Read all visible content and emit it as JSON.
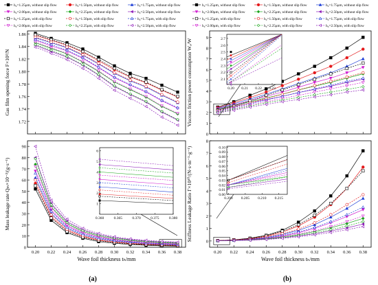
{
  "colors": [
    "#000000",
    "#e41a1c",
    "#1f3fd6",
    "#d01fd0",
    "#1aa51a",
    "#8c1ab8",
    "#e8a21a",
    "#9ab81a",
    "#8aa0b8"
  ],
  "markers": [
    "square",
    "circle",
    "triangle",
    "tri-down",
    "diamond",
    "tri-left",
    "tri-right",
    "hexagon",
    "star"
  ],
  "legend_a": {
    "labels": [
      "h₀=1.25μm, without slip flow",
      "h₀=1.50μm, without slip flow",
      "h₀=1.75μm, without slip flow",
      "h₀=2.00μm, without slip flow",
      "h₀=2.25μm, without slip flow",
      "h₀=2.50μm, without slip flow",
      "h₀=1.25μm, with slip flow",
      "h₀=1.50μm, with slip flow",
      "h₀=1.75μm, with slip flow",
      "h₀=2.00μm, with slip flow",
      "h₀=2.25μm, with slip flow",
      "h₀=2.50μm, with slip flow"
    ]
  },
  "legend_b": {
    "labels": [
      "h₀=1.25μm, without slip flow",
      "h₀=1.50μm, without slip flow",
      "h₀=1.75μm, without slip flow",
      "h₀=2.00μm, without slip flow",
      "h₀=2.25μm, without slip flow",
      "h₀=2.50μm, without slip flow",
      "h₀=1.25μm, with slip flow",
      "h₀=1.50μm, with slip flow",
      "h₀=1.75μm, with slip flow",
      "h₀=2.00μm, with slip flow",
      "h₀=2.25μm, with slip flow",
      "h₀=2.50μm, with slip flow"
    ]
  },
  "panel_labels": {
    "a": "(a)",
    "b": "(b)"
  },
  "chart_data": [
    {
      "id": "a_top",
      "type": "line",
      "ylabel": "Gas film opening force F×10³/N",
      "xlabel": "",
      "ylim": [
        1.7,
        1.865
      ],
      "yticks": [
        1.72,
        1.74,
        1.76,
        1.78,
        1.8,
        1.82,
        1.84,
        1.86
      ],
      "ytick_labels": [
        "1.72",
        "1.74",
        "1.76",
        "1.78",
        "1.80",
        "1.82",
        "1.84",
        "1.86"
      ],
      "x": [
        0.2,
        0.22,
        0.24,
        0.26,
        0.28,
        0.3,
        0.32,
        0.34,
        0.36,
        0.38
      ],
      "series": [
        {
          "name": "h₀=1.25μm, without slip flow",
          "values": [
            1.861,
            1.853,
            1.846,
            1.836,
            1.823,
            1.809,
            1.797,
            1.789,
            1.778,
            1.767
          ]
        },
        {
          "name": "h₀=1.50μm, without slip flow",
          "values": [
            1.858,
            1.85,
            1.842,
            1.831,
            1.817,
            1.803,
            1.791,
            1.782,
            1.77,
            1.759
          ]
        },
        {
          "name": "h₀=1.75μm, without slip flow",
          "values": [
            1.854,
            1.846,
            1.838,
            1.826,
            1.812,
            1.797,
            1.785,
            1.775,
            1.762,
            1.75
          ]
        },
        {
          "name": "h₀=2.00μm, without slip flow",
          "values": [
            1.85,
            1.841,
            1.833,
            1.821,
            1.806,
            1.79,
            1.778,
            1.767,
            1.753,
            1.741
          ]
        },
        {
          "name": "h₀=2.25μm, without slip flow",
          "values": [
            1.846,
            1.837,
            1.828,
            1.815,
            1.8,
            1.783,
            1.771,
            1.759,
            1.744,
            1.732
          ]
        },
        {
          "name": "h₀=2.50μm, without slip flow",
          "values": [
            1.842,
            1.832,
            1.823,
            1.81,
            1.794,
            1.776,
            1.763,
            1.751,
            1.735,
            1.722
          ]
        },
        {
          "name": "h₀=1.25μm, with slip flow",
          "values": [
            1.859,
            1.851,
            1.843,
            1.832,
            1.819,
            1.805,
            1.792,
            1.783,
            1.771,
            1.76
          ]
        },
        {
          "name": "h₀=1.50μm, with slip flow",
          "values": [
            1.855,
            1.847,
            1.839,
            1.827,
            1.813,
            1.798,
            1.786,
            1.776,
            1.763,
            1.751
          ]
        },
        {
          "name": "h₀=1.75μm, with slip flow",
          "values": [
            1.851,
            1.843,
            1.834,
            1.822,
            1.807,
            1.791,
            1.779,
            1.768,
            1.754,
            1.742
          ]
        },
        {
          "name": "h₀=2.00μm, with slip flow",
          "values": [
            1.847,
            1.838,
            1.829,
            1.816,
            1.801,
            1.784,
            1.772,
            1.76,
            1.745,
            1.733
          ]
        },
        {
          "name": "h₀=2.25μm, with slip flow",
          "values": [
            1.843,
            1.834,
            1.824,
            1.811,
            1.795,
            1.777,
            1.764,
            1.752,
            1.736,
            1.723
          ]
        },
        {
          "name": "h₀=2.50μm, with slip flow",
          "values": [
            1.839,
            1.829,
            1.819,
            1.805,
            1.789,
            1.77,
            1.757,
            1.744,
            1.727,
            1.714
          ]
        }
      ]
    },
    {
      "id": "a_bottom",
      "type": "line",
      "ylabel": "Mass leakage rate Qₘ×10⁻²/(g·s⁻¹)",
      "xlabel": "Wave foil thickness tₕ/mm",
      "ylim": [
        0,
        95
      ],
      "yticks": [
        0,
        10,
        20,
        30,
        40,
        50,
        60,
        70,
        80,
        90
      ],
      "ytick_labels": [
        "0",
        "10",
        "20",
        "30",
        "40",
        "50",
        "60",
        "70",
        "80",
        "90"
      ],
      "x": [
        0.2,
        0.22,
        0.24,
        0.26,
        0.28,
        0.3,
        0.32,
        0.34,
        0.36,
        0.38
      ],
      "xtick_labels": [
        "0.20",
        "0.22",
        "0.24",
        "0.26",
        "0.28",
        "0.30",
        "0.32",
        "0.34",
        "0.36",
        "0.38"
      ],
      "series": [
        {
          "name": "h₀=1.25μm, without slip flow",
          "values": [
            52,
            24,
            13,
            8,
            5,
            3.5,
            2.5,
            1.8,
            1.3,
            1.0
          ]
        },
        {
          "name": "h₀=1.50μm, without slip flow",
          "values": [
            57,
            27,
            15,
            9.5,
            6.2,
            4.5,
            3.3,
            2.5,
            1.9,
            1.5
          ]
        },
        {
          "name": "h₀=1.75μm, without slip flow",
          "values": [
            62,
            30,
            17,
            11,
            7.5,
            5.5,
            4.2,
            3.2,
            2.6,
            2.1
          ]
        },
        {
          "name": "h₀=2.00μm, without slip flow",
          "values": [
            68,
            33,
            19,
            12.5,
            8.8,
            6.5,
            5.0,
            4.0,
            3.3,
            2.8
          ]
        },
        {
          "name": "h₀=2.25μm, without slip flow",
          "values": [
            74,
            36,
            21,
            14,
            10,
            7.5,
            5.9,
            4.8,
            4.0,
            3.5
          ]
        },
        {
          "name": "h₀=2.50μm, without slip flow",
          "values": [
            80,
            39,
            23,
            15.5,
            11.2,
            8.5,
            6.8,
            5.6,
            4.7,
            4.2
          ]
        },
        {
          "name": "h₀=1.25μm, with slip flow",
          "values": [
            55,
            26,
            14,
            8.8,
            5.8,
            4.1,
            3.0,
            2.2,
            1.7,
            1.3
          ]
        },
        {
          "name": "h₀=1.50μm, with slip flow",
          "values": [
            60,
            29,
            16,
            10.3,
            7.0,
            5.1,
            3.8,
            2.9,
            2.3,
            1.8
          ]
        },
        {
          "name": "h₀=1.75μm, with slip flow",
          "values": [
            66,
            32,
            18,
            12,
            8.3,
            6.1,
            4.7,
            3.7,
            3.0,
            2.5
          ]
        },
        {
          "name": "h₀=2.00μm, with slip flow",
          "values": [
            72,
            35,
            20,
            13.5,
            9.6,
            7.2,
            5.6,
            4.5,
            3.7,
            3.2
          ]
        },
        {
          "name": "h₀=2.25μm, with slip flow",
          "values": [
            79,
            38,
            22,
            15,
            10.9,
            8.2,
            6.5,
            5.3,
            4.4,
            3.9
          ]
        },
        {
          "name": "h₀=2.50μm, with slip flow",
          "values": [
            90,
            42,
            25,
            16.8,
            12.3,
            9.3,
            7.4,
            6.2,
            5.2,
            4.6
          ]
        }
      ],
      "inset": {
        "xlim": [
          0.36,
          0.38
        ],
        "xticks": [
          0.36,
          0.365,
          0.37,
          0.375,
          0.38
        ],
        "xtick_labels": [
          "0.360",
          "0.365",
          "0.370",
          "0.375",
          "0.380"
        ],
        "ylim": [
          0,
          6.3
        ],
        "yticks": [
          1,
          2,
          3,
          4,
          5,
          6
        ],
        "ytick_labels": [
          "1",
          "2",
          "3",
          "4",
          "5",
          "6"
        ]
      }
    },
    {
      "id": "b_top",
      "type": "line",
      "ylabel": "Viscous friction power consumption Wₐ/W",
      "xlabel": "",
      "ylim": [
        0,
        9.6
      ],
      "yticks": [
        0,
        1,
        2,
        3,
        4,
        5,
        6,
        7,
        8,
        9
      ],
      "ytick_labels": [
        "0",
        "1",
        "2",
        "3",
        "4",
        "5",
        "6",
        "7",
        "8",
        "9"
      ],
      "x": [
        0.2,
        0.22,
        0.24,
        0.26,
        0.28,
        0.3,
        0.32,
        0.34,
        0.36,
        0.38
      ],
      "series": [
        {
          "name": "h₀=1.25μm, without slip flow",
          "values": [
            2.5,
            3.0,
            3.6,
            4.2,
            4.9,
            5.6,
            6.3,
            7.1,
            8.0,
            9.0
          ]
        },
        {
          "name": "h₀=1.50μm, without slip flow",
          "values": [
            2.45,
            2.9,
            3.4,
            3.9,
            4.5,
            5.1,
            5.7,
            6.3,
            7.1,
            7.9
          ]
        },
        {
          "name": "h₀=1.75μm, without slip flow",
          "values": [
            2.4,
            2.8,
            3.25,
            3.7,
            4.2,
            4.7,
            5.2,
            5.7,
            6.3,
            7.0
          ]
        },
        {
          "name": "h₀=2.00μm, without slip flow",
          "values": [
            2.35,
            2.7,
            3.1,
            3.5,
            3.9,
            4.35,
            4.8,
            5.2,
            5.7,
            6.2
          ]
        },
        {
          "name": "h₀=2.25μm, without slip flow",
          "values": [
            2.3,
            2.65,
            3.0,
            3.35,
            3.7,
            4.1,
            4.45,
            4.8,
            5.2,
            5.6
          ]
        },
        {
          "name": "h₀=2.50μm, without slip flow",
          "values": [
            2.25,
            2.55,
            2.9,
            3.2,
            3.5,
            3.85,
            4.15,
            4.45,
            4.8,
            5.1
          ]
        },
        {
          "name": "h₀=1.25μm, with slip flow",
          "values": [
            2.2,
            2.6,
            3.1,
            3.6,
            4.1,
            4.6,
            5.1,
            5.6,
            6.1,
            6.6
          ]
        },
        {
          "name": "h₀=1.50μm, with slip flow",
          "values": [
            2.15,
            2.5,
            2.9,
            3.3,
            3.7,
            4.1,
            4.5,
            4.9,
            5.3,
            5.7
          ]
        },
        {
          "name": "h₀=1.75μm, with slip flow",
          "values": [
            2.1,
            2.45,
            2.8,
            3.15,
            3.5,
            3.85,
            4.2,
            4.55,
            4.9,
            5.2
          ]
        },
        {
          "name": "h₀=2.00μm, with slip flow",
          "values": [
            2.05,
            2.35,
            2.7,
            3.0,
            3.3,
            3.6,
            3.9,
            4.2,
            4.5,
            4.8
          ]
        },
        {
          "name": "h₀=2.25μm, with slip flow",
          "values": [
            2.0,
            2.3,
            2.6,
            2.9,
            3.15,
            3.4,
            3.65,
            3.9,
            4.15,
            4.4
          ]
        },
        {
          "name": "h₀=2.50μm, with slip flow",
          "values": [
            1.95,
            2.2,
            2.5,
            2.75,
            3.0,
            3.2,
            3.45,
            3.65,
            3.9,
            4.1
          ]
        }
      ],
      "inset": {
        "xlim": [
          0.197,
          0.237
        ],
        "xticks": [
          0.2,
          0.21,
          0.22,
          0.23
        ],
        "xtick_labels": [
          "0.20",
          "0.21",
          "0.22",
          "0.23"
        ],
        "ylim": [
          2.02,
          2.76
        ],
        "yticks": [
          2.1,
          2.2,
          2.3,
          2.4,
          2.5,
          2.6,
          2.7
        ],
        "ytick_labels": [
          "2.1",
          "2.2",
          "2.3",
          "2.4",
          "2.5",
          "2.6",
          "2.7"
        ]
      }
    },
    {
      "id": "b_bottom",
      "type": "line",
      "ylabel": "Stiffness Leakage Ratio Γ×10¹⁰/(N·s·m⁻¹·g⁻¹)",
      "xlabel": "Wave foil thickness tₕ/mm",
      "ylim": [
        -0.5,
        8.0
      ],
      "yticks": [
        0,
        1,
        2,
        3,
        4,
        5,
        6,
        7,
        8
      ],
      "ytick_labels": [
        "0",
        "1",
        "2",
        "3",
        "4",
        "5",
        "6",
        "7",
        "8"
      ],
      "x": [
        0.2,
        0.22,
        0.24,
        0.26,
        0.28,
        0.3,
        0.32,
        0.34,
        0.36,
        0.38
      ],
      "xtick_labels": [
        "0.20",
        "0.22",
        "0.24",
        "0.26",
        "0.28",
        "0.30",
        "0.32",
        "0.34",
        "0.36",
        "0.38"
      ],
      "series": [
        {
          "name": "h₀=1.25μm, without slip flow",
          "values": [
            0.03,
            0.09,
            0.22,
            0.45,
            0.85,
            1.5,
            2.4,
            3.6,
            5.2,
            7.2
          ]
        },
        {
          "name": "h₀=1.50μm, without slip flow",
          "values": [
            0.03,
            0.08,
            0.18,
            0.38,
            0.7,
            1.2,
            1.9,
            2.9,
            4.2,
            5.9
          ]
        },
        {
          "name": "h₀=1.75μm, without slip flow",
          "values": [
            0.02,
            0.06,
            0.14,
            0.28,
            0.52,
            0.85,
            1.3,
            1.9,
            2.6,
            3.4
          ]
        },
        {
          "name": "h₀=2.00μm, without slip flow",
          "values": [
            0.02,
            0.05,
            0.11,
            0.22,
            0.4,
            0.65,
            1.0,
            1.45,
            1.95,
            2.5
          ]
        },
        {
          "name": "h₀=2.25μm, without slip flow",
          "values": [
            0.02,
            0.04,
            0.09,
            0.18,
            0.32,
            0.5,
            0.75,
            1.05,
            1.4,
            1.8
          ]
        },
        {
          "name": "h₀=2.50μm, without slip flow",
          "values": [
            0.015,
            0.035,
            0.07,
            0.14,
            0.25,
            0.4,
            0.58,
            0.8,
            1.05,
            1.35
          ]
        },
        {
          "name": "h₀=1.25μm, with slip flow",
          "values": [
            0.03,
            0.08,
            0.2,
            0.42,
            0.78,
            1.3,
            2.05,
            3.0,
            4.2,
            5.6
          ]
        },
        {
          "name": "h₀=1.50μm, with slip flow",
          "values": [
            0.025,
            0.07,
            0.16,
            0.32,
            0.58,
            0.95,
            1.45,
            2.1,
            2.9,
            3.7
          ]
        },
        {
          "name": "h₀=1.75μm, with slip flow",
          "values": [
            0.02,
            0.055,
            0.12,
            0.24,
            0.44,
            0.72,
            1.08,
            1.55,
            2.1,
            2.7
          ]
        },
        {
          "name": "h₀=2.00μm, with slip flow",
          "values": [
            0.02,
            0.045,
            0.1,
            0.19,
            0.34,
            0.55,
            0.82,
            1.15,
            1.55,
            2.0
          ]
        },
        {
          "name": "h₀=2.25μm, with slip flow",
          "values": [
            0.015,
            0.04,
            0.08,
            0.15,
            0.27,
            0.43,
            0.64,
            0.9,
            1.2,
            1.55
          ]
        },
        {
          "name": "h₀=2.50μm, with slip flow",
          "values": [
            0.012,
            0.03,
            0.06,
            0.12,
            0.21,
            0.33,
            0.49,
            0.68,
            0.9,
            1.15
          ]
        }
      ],
      "inset": {
        "xlim": [
          0.1995,
          0.2175
        ],
        "xticks": [
          0.2,
          0.205,
          0.21,
          0.215
        ],
        "xtick_labels": [
          "0.200",
          "0.205",
          "0.210",
          "0.215"
        ],
        "ylim": [
          0,
          0.102
        ],
        "yticks": [
          0.0,
          0.01,
          0.02,
          0.03,
          0.04,
          0.05,
          0.06,
          0.07,
          0.08,
          0.09,
          0.1
        ],
        "ytick_labels": [
          "0.00",
          "0.01",
          "0.02",
          "0.03",
          "0.04",
          "0.05",
          "0.06",
          "0.07",
          "0.08",
          "0.09",
          "0.10"
        ]
      }
    }
  ]
}
